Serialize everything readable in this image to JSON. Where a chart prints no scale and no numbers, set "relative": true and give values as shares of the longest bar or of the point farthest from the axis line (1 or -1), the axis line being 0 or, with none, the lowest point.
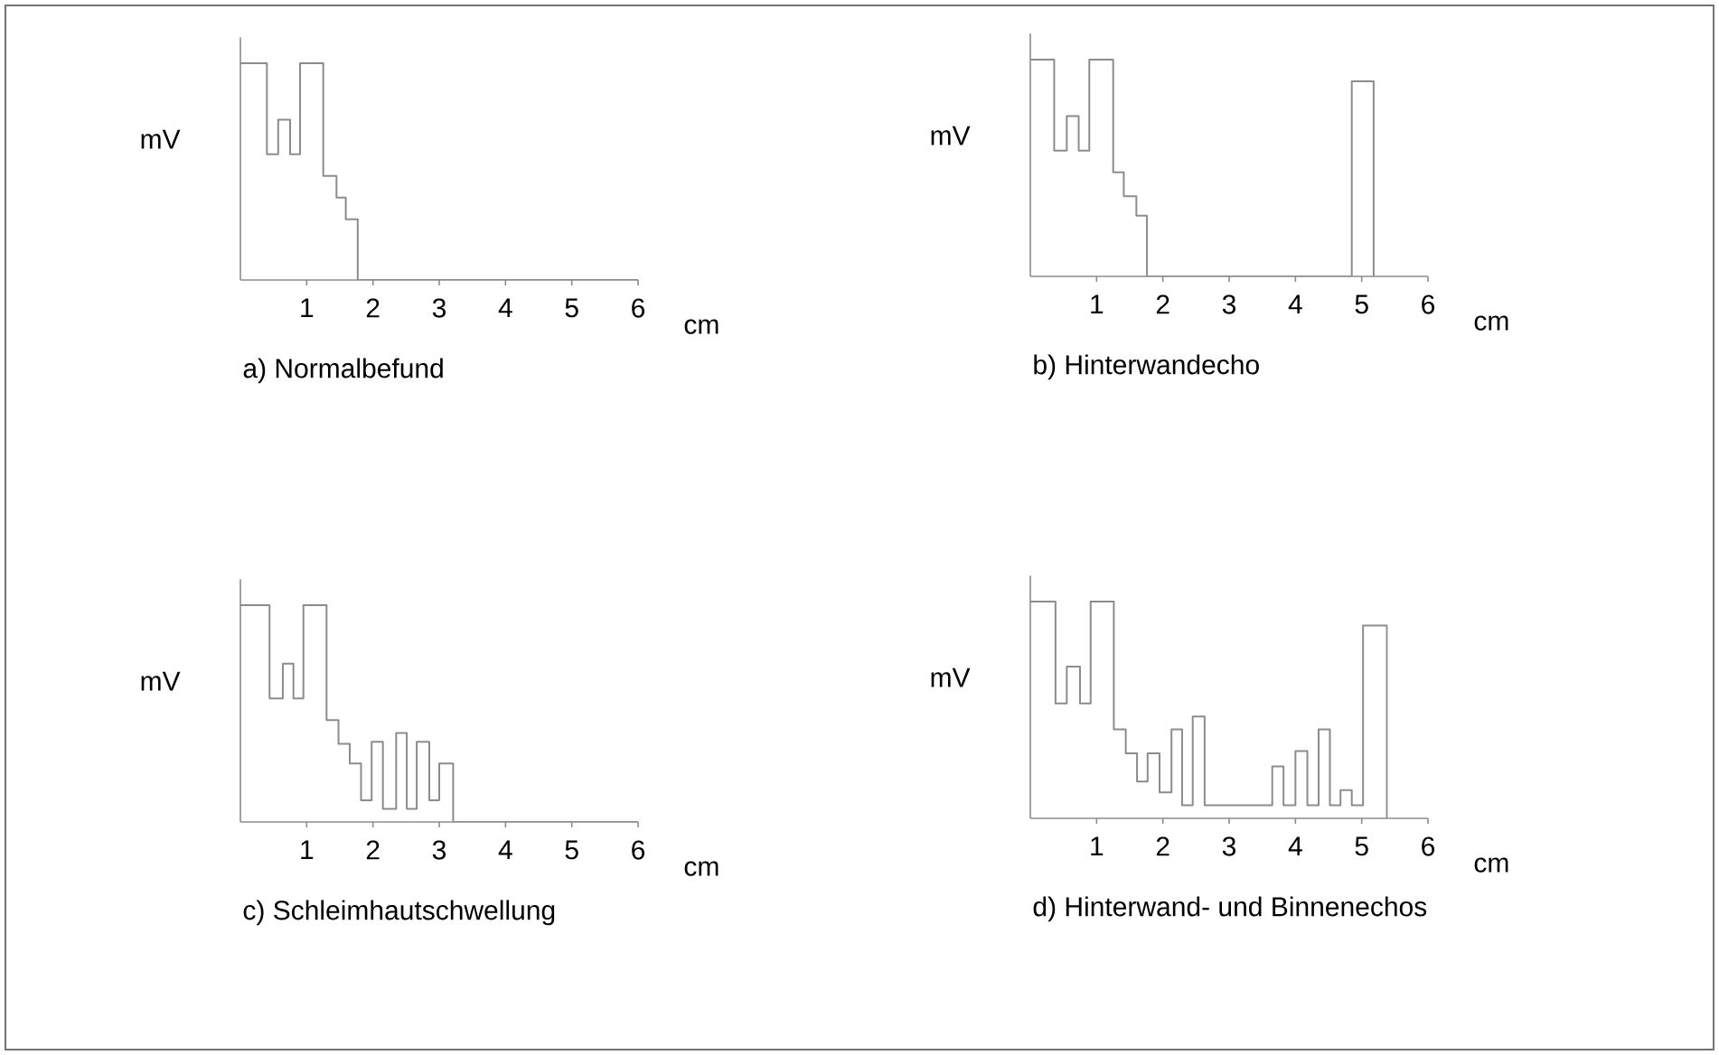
{
  "chart_data": [
    {
      "type": "step",
      "title": "a) Normalbefund",
      "xlabel": "cm",
      "ylabel": "mV",
      "xlim": [
        0,
        6
      ],
      "xticks": [
        1,
        2,
        3,
        4,
        5,
        6
      ],
      "relative": true,
      "color": "#8c8c8c",
      "x": [
        0,
        0.4,
        0.57,
        0.75,
        0.9,
        1.25,
        1.45,
        1.59,
        1.77,
        6
      ],
      "values": [
        1,
        0.58,
        0.74,
        0.58,
        1,
        0.48,
        0.38,
        0.28,
        0,
        0
      ]
    },
    {
      "type": "step",
      "title": "b) Hinterwandecho",
      "xlabel": "cm",
      "ylabel": "mV",
      "xlim": [
        0,
        6
      ],
      "xticks": [
        1,
        2,
        3,
        4,
        5,
        6
      ],
      "relative": true,
      "color": "#8c8c8c",
      "x": [
        0,
        0.36,
        0.55,
        0.73,
        0.89,
        1.25,
        1.41,
        1.6,
        1.76,
        4.85,
        5.18
      ],
      "values": [
        1,
        0.58,
        0.74,
        0.58,
        1,
        0.48,
        0.37,
        0.28,
        0,
        0.9,
        0
      ]
    },
    {
      "type": "step",
      "title": "c) Schleimhautschwellung",
      "xlabel": "cm",
      "ylabel": "mV",
      "xlim": [
        0,
        6
      ],
      "xticks": [
        1,
        2,
        3,
        4,
        5,
        6
      ],
      "relative": true,
      "color": "#8c8c8c",
      "x": [
        0,
        0.44,
        0.64,
        0.8,
        0.95,
        1.3,
        1.48,
        1.65,
        1.82,
        1.98,
        2.15,
        2.35,
        2.51,
        2.66,
        2.85,
        3.0,
        3.21,
        6
      ],
      "values": [
        1,
        0.57,
        0.73,
        0.57,
        1,
        0.47,
        0.36,
        0.27,
        0.1,
        0.37,
        0.06,
        0.41,
        0.06,
        0.37,
        0.1,
        0.27,
        0,
        0
      ]
    },
    {
      "type": "step",
      "title": "d) Hinterwand- und Binnenechos",
      "xlabel": "cm",
      "ylabel": "mV",
      "xlim": [
        0,
        6
      ],
      "xticks": [
        1,
        2,
        3,
        4,
        5,
        6
      ],
      "relative": true,
      "color": "#8c8c8c",
      "x": [
        0,
        0.38,
        0.55,
        0.75,
        0.91,
        1.26,
        1.44,
        1.61,
        1.77,
        1.95,
        2.13,
        2.29,
        2.45,
        2.63,
        3.65,
        3.82,
        4.0,
        4.18,
        4.35,
        4.52,
        4.68,
        4.85,
        5.02,
        5.38
      ],
      "values": [
        1,
        0.53,
        0.7,
        0.53,
        1,
        0.41,
        0.3,
        0.17,
        0.3,
        0.12,
        0.41,
        0.06,
        0.47,
        0.06,
        0.24,
        0.06,
        0.31,
        0.06,
        0.41,
        0.06,
        0.13,
        0.06,
        0.89,
        0
      ]
    }
  ]
}
